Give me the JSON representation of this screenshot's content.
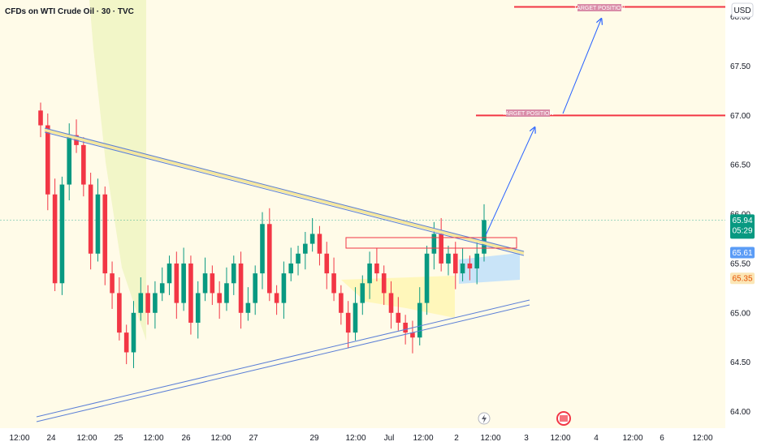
{
  "chart_data": {
    "type": "candlestick",
    "title": "CFDs on WTI Crude Oil · 30 · TVC",
    "currency": "USD",
    "ylim": [
      63.85,
      68.3
    ],
    "y_ticks": [
      "68.00",
      "67.50",
      "67.00",
      "66.50",
      "66.00",
      "65.50",
      "65.00",
      "64.50",
      "64.00"
    ],
    "x_ticks": [
      "12:00",
      "24",
      "12:00",
      "25",
      "12:00",
      "26",
      "12:00",
      "27",
      "29",
      "12:00",
      "Jul",
      "12:00",
      "2",
      "12:00",
      "3",
      "12:00",
      "4",
      "12:00",
      "6",
      "12:00"
    ],
    "price_tags": [
      {
        "value": "65.94",
        "sub": "05:29",
        "color": "#089981"
      },
      {
        "value": "65.61",
        "color": "#5b9cf6"
      },
      {
        "value": "65.35",
        "color": "#fbe6b6",
        "text_color": "#e65100"
      }
    ],
    "target_levels": [
      {
        "label": "TARGET POSITION",
        "value": 68.1
      },
      {
        "label": "TARGET POSITION",
        "value": 67.0
      }
    ],
    "colors": {
      "up": "#089981",
      "down": "#f23645",
      "trendline": "#5b7fd6",
      "target": "#f23645",
      "arrow": "#2962ff"
    },
    "close_series": [
      66.9,
      66.2,
      65.3,
      66.3,
      66.8,
      66.7,
      66.3,
      65.6,
      66.2,
      65.4,
      65.2,
      64.8,
      64.6,
      65.0,
      65.2,
      65.0,
      65.2,
      65.3,
      65.5,
      65.1,
      65.5,
      64.9,
      65.2,
      65.4,
      65.2,
      65.1,
      65.3,
      65.5,
      65.0,
      65.1,
      65.4,
      65.9,
      65.2,
      65.1,
      65.4,
      65.5,
      65.6,
      65.7,
      65.8,
      65.6,
      65.4,
      65.2,
      65.0,
      64.8,
      65.1,
      65.3,
      65.5,
      65.4,
      65.2,
      65.0,
      64.9,
      64.8,
      64.75,
      65.1,
      65.6,
      65.8,
      65.5,
      65.6,
      65.4,
      65.5,
      65.45,
      65.6,
      65.94
    ]
  }
}
